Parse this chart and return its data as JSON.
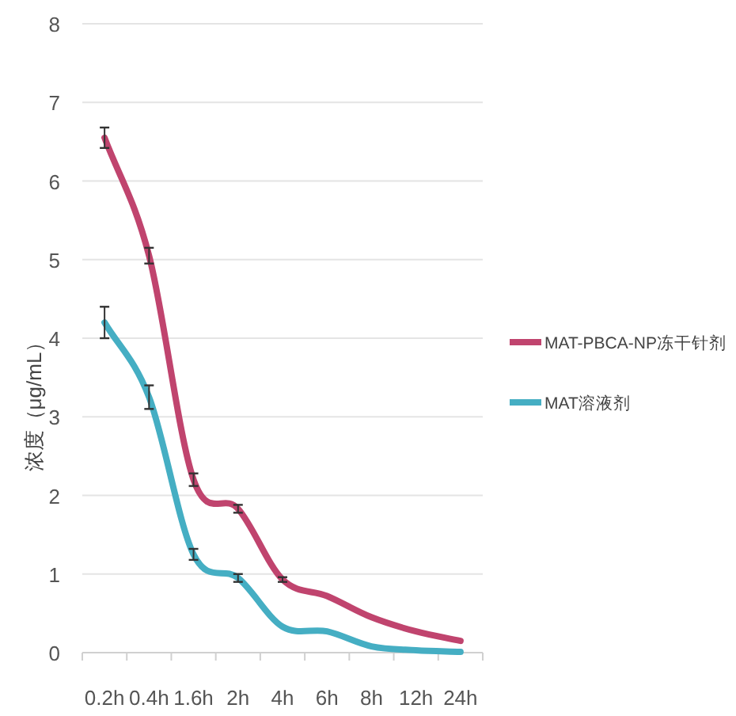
{
  "chart_data": {
    "type": "line",
    "ylabel": "浓度（μg/mL）",
    "categories": [
      "0.2h",
      "0.4h",
      "1.6h",
      "2h",
      "4h",
      "6h",
      "8h",
      "12h",
      "24h"
    ],
    "series": [
      {
        "name": "MAT-PBCA-NP冻干针剂",
        "color": "#c0446e",
        "values": [
          6.55,
          5.05,
          2.2,
          1.83,
          0.93,
          0.72,
          0.45,
          0.27,
          0.15
        ],
        "errors": [
          0.13,
          0.1,
          0.08,
          0.05,
          0.03,
          null,
          null,
          null,
          null
        ]
      },
      {
        "name": "MAT溶液剂",
        "color": "#45aec3",
        "values": [
          4.2,
          3.25,
          1.25,
          0.95,
          0.33,
          0.27,
          0.08,
          0.03,
          0.01
        ],
        "errors": [
          0.2,
          0.15,
          0.07,
          0.05,
          null,
          null,
          null,
          null,
          null
        ]
      }
    ],
    "ylim": [
      0,
      8
    ],
    "yticks": [
      0,
      1,
      2,
      3,
      4,
      5,
      6,
      7,
      8
    ],
    "grid": "y",
    "legend": "right",
    "marker": "none",
    "line_style": "solid"
  }
}
